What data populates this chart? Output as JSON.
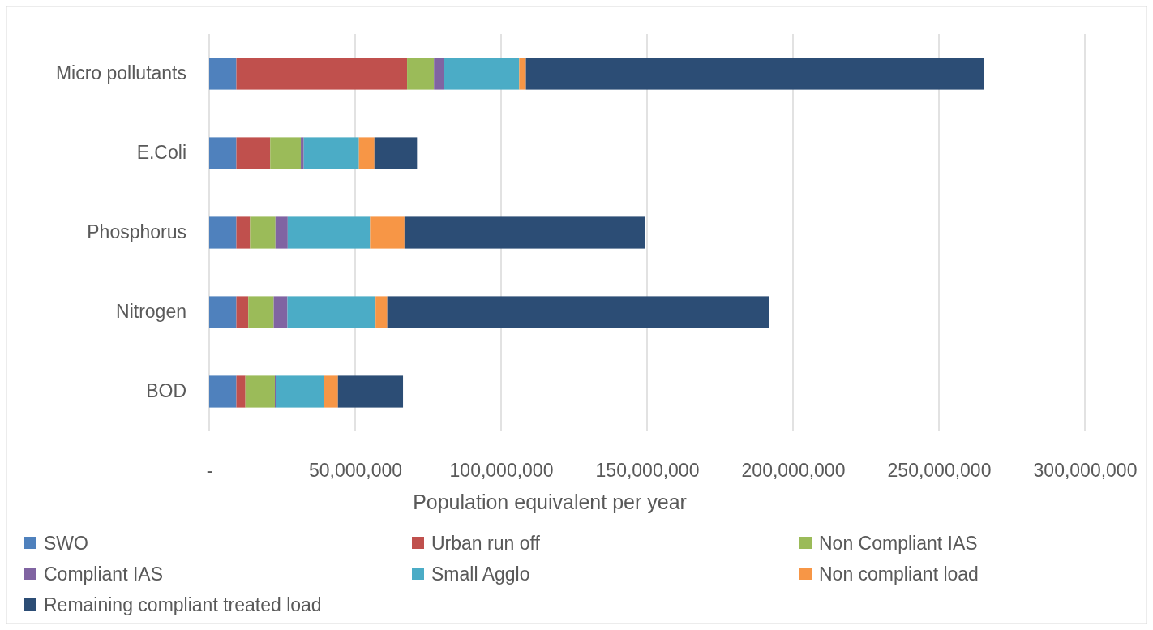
{
  "chart_data": {
    "type": "bar",
    "orientation": "horizontal",
    "stacked": true,
    "xlabel": "Population equivalent per year",
    "categories": [
      "Micro pollutants",
      "E.Coli",
      "Phosphorus",
      "Nitrogen",
      "BOD"
    ],
    "series": [
      {
        "name": "SWO",
        "color": "#4f81bd",
        "values": [
          9300000,
          9300000,
          9300000,
          9300000,
          9300000
        ]
      },
      {
        "name": "Urban run off",
        "color": "#c0504d",
        "values": [
          58500000,
          11600000,
          4700000,
          4100000,
          3100000
        ]
      },
      {
        "name": "Non Compliant IAS",
        "color": "#9bbb59",
        "values": [
          9200000,
          10500000,
          8700000,
          8700000,
          10100000
        ]
      },
      {
        "name": "Compliant IAS",
        "color": "#8064a2",
        "values": [
          3400000,
          1000000,
          4200000,
          4700000,
          300000
        ]
      },
      {
        "name": "Small Agglo",
        "color": "#4bacc6",
        "values": [
          25800000,
          18900000,
          28200000,
          30200000,
          16600000
        ]
      },
      {
        "name": "Non compliant load",
        "color": "#f79646",
        "values": [
          2300000,
          5300000,
          11800000,
          4000000,
          4700000
        ]
      },
      {
        "name": "Remaining compliant treated load",
        "color": "#2c4d75",
        "values": [
          156900000,
          14600000,
          82300000,
          130800000,
          22300000
        ]
      }
    ],
    "xlim": [
      0,
      300000000
    ],
    "xticks": [
      {
        "value": 0,
        "label": "-"
      },
      {
        "value": 50000000,
        "label": "50,000,000"
      },
      {
        "value": 100000000,
        "label": "100,000,000"
      },
      {
        "value": 150000000,
        "label": "150,000,000"
      },
      {
        "value": 200000000,
        "label": "200,000,000"
      },
      {
        "value": 250000000,
        "label": "250,000,000"
      },
      {
        "value": 300000000,
        "label": "300,000,000"
      }
    ],
    "grid": "x",
    "legend": "bottom"
  }
}
